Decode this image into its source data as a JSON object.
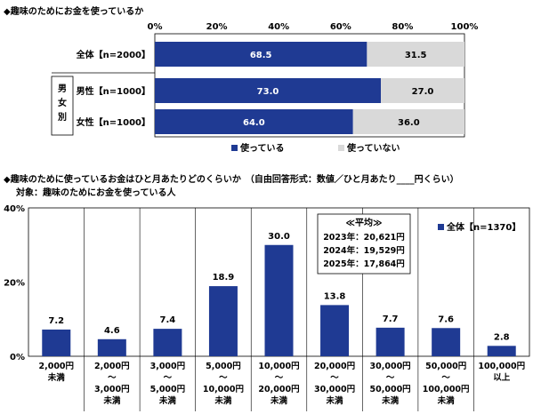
{
  "section1": {
    "title": "◆趣味のためにお金を使っているか"
  },
  "section2": {
    "title": "◆趣味のために使っているお金はひと月あたりどのくらいか　（自由回答形式：数値／ひと月あたり____円くらい）",
    "subtitle": "対象：趣味のためにお金を使っている人"
  },
  "chart_data": [
    {
      "type": "bar",
      "orientation": "horizontal",
      "stacked": true,
      "categories": [
        "全体【n=2000】",
        "男性【n=1000】",
        "女性【n=1000】"
      ],
      "group_label": "男女別",
      "series": [
        {
          "name": "使っている",
          "values": [
            68.5,
            73.0,
            64.0
          ],
          "labels": [
            "68.5",
            "73.0",
            "64.0"
          ],
          "color": "#1f3a93"
        },
        {
          "name": "使っていない",
          "values": [
            31.5,
            27.0,
            36.0
          ],
          "labels": [
            "31.5",
            "27.0",
            "36.0"
          ],
          "color": "#d9d9d9"
        }
      ],
      "xlim": [
        0,
        100
      ],
      "x_ticks": [
        "0%",
        "20%",
        "40%",
        "60%",
        "80%",
        "100%"
      ],
      "legend_placement": "bottom"
    },
    {
      "type": "bar",
      "categories": [
        [
          "2,000円",
          "未満"
        ],
        [
          "2,000円",
          "～",
          "3,000円",
          "未満"
        ],
        [
          "3,000円",
          "～",
          "5,000円",
          "未満"
        ],
        [
          "5,000円",
          "～",
          "10,000円",
          "未満"
        ],
        [
          "10,000円",
          "～",
          "20,000円",
          "未満"
        ],
        [
          "20,000円",
          "～",
          "30,000円",
          "未満"
        ],
        [
          "30,000円",
          "～",
          "50,000円",
          "未満"
        ],
        [
          "50,000円",
          "～",
          "100,000円",
          "未満"
        ],
        [
          "100,000円",
          "以上"
        ]
      ],
      "series": [
        {
          "name": "全体【n=1370】",
          "values": [
            7.2,
            4.6,
            7.4,
            18.9,
            30.0,
            13.8,
            7.7,
            7.6,
            2.8
          ],
          "labels": [
            "7.2",
            "4.6",
            "7.4",
            "18.9",
            "30.0",
            "13.8",
            "7.7",
            "7.6",
            "2.8"
          ],
          "color": "#1f3a93"
        }
      ],
      "ylim": [
        0,
        40
      ],
      "y_ticks": [
        "0%",
        "20%",
        "40%"
      ],
      "legend_placement": "top-right",
      "annotation": {
        "title": "≪平均≫",
        "lines": [
          "2023年：20,621円",
          "2024年：19,529円",
          "2025年：17,864円"
        ]
      }
    }
  ]
}
